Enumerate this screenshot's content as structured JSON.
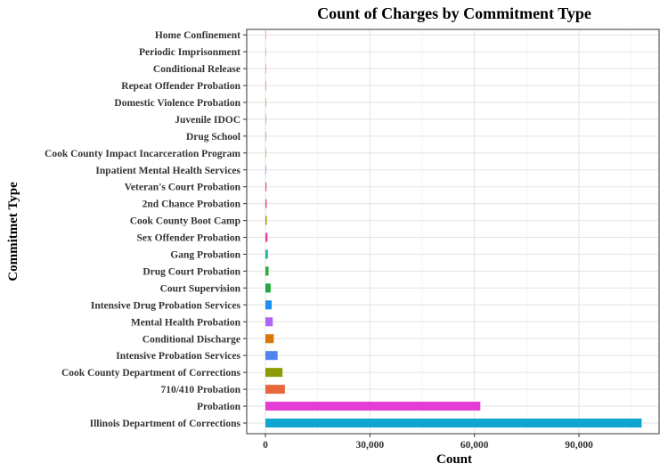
{
  "chart_data": {
    "type": "bar",
    "orientation": "horizontal",
    "title": "Count of Charges by Commitment Type",
    "xlabel": "Count",
    "ylabel": "Commitmet Type",
    "xlim": [
      0,
      112000
    ],
    "x_ticks": [
      0,
      30000,
      60000,
      90000
    ],
    "x_tick_labels": [
      "0",
      "30,000",
      "60,000",
      "90,000"
    ],
    "grid": true,
    "legend": "none",
    "categories": [
      "Illinois Department of Corrections",
      "Probation",
      "710/410 Probation",
      "Cook County Department of Corrections",
      "Intensive Probation Services",
      "Conditional Discharge",
      "Mental Health Probation",
      "Intensive Drug Probation Services",
      "Court Supervision",
      "Drug Court Probation",
      "Gang Probation",
      "Sex Offender Probation",
      "Cook County Boot Camp",
      "2nd Chance Probation",
      "Veteran's Court Probation",
      "Inpatient Mental Health Services",
      "Cook County Impact Incarceration Program",
      "Drug School",
      "Juvenile IDOC",
      "Domestic Violence Probation",
      "Repeat Offender Probation",
      "Conditional Release",
      "Periodic Imprisonment",
      "Home Confinement"
    ],
    "values": [
      108000,
      61700,
      5600,
      4900,
      3500,
      2400,
      2100,
      1800,
      1500,
      900,
      700,
      600,
      400,
      350,
      300,
      200,
      150,
      100,
      60,
      30,
      25,
      20,
      15,
      10
    ],
    "colors": [
      "#0FA5D1",
      "#E43DD6",
      "#E8673A",
      "#8C9A06",
      "#5083F0",
      "#D7770A",
      "#B064F5",
      "#1E8FF0",
      "#1FAA3A",
      "#2CAA34",
      "#13B89A",
      "#F03C9E",
      "#A3A20C",
      "#F2486A",
      "#F04C7A",
      "#78A0F8",
      "#6AB018",
      "#27B4C6",
      "#8B7CF2",
      "#C78A20",
      "#E25C5C",
      "#F06A4F",
      "#D980F2",
      "#F8766D"
    ]
  }
}
